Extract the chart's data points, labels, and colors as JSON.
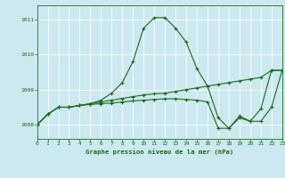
{
  "title": "Graphe pression niveau de la mer (hPa)",
  "bg_color": "#cce8f0",
  "grid_color": "#ffffff",
  "line_color": "#1a6b1a",
  "xlim": [
    0,
    23
  ],
  "ylim": [
    1007.6,
    1011.4
  ],
  "yticks": [
    1008,
    1009,
    1010,
    1011
  ],
  "xticks": [
    0,
    1,
    2,
    3,
    4,
    5,
    6,
    7,
    8,
    9,
    10,
    11,
    12,
    13,
    14,
    15,
    16,
    17,
    18,
    19,
    20,
    21,
    22,
    23
  ],
  "series": [
    [
      1008.0,
      1008.3,
      1008.5,
      1008.5,
      1008.55,
      1008.6,
      1008.7,
      1008.9,
      1009.2,
      1009.8,
      1010.75,
      1011.05,
      1011.05,
      1010.75,
      1010.35,
      1009.6,
      1009.1,
      1008.2,
      1007.9,
      1008.25,
      1008.1,
      1008.45,
      1009.55,
      1009.55
    ],
    [
      1008.0,
      1008.3,
      1008.5,
      1008.5,
      1008.55,
      1008.6,
      1008.65,
      1008.7,
      1008.75,
      1008.8,
      1008.85,
      1008.88,
      1008.9,
      1008.95,
      1009.0,
      1009.05,
      1009.1,
      1009.15,
      1009.2,
      1009.25,
      1009.3,
      1009.35,
      1009.55,
      1009.55
    ],
    [
      1008.0,
      1008.3,
      1008.5,
      1008.5,
      1008.55,
      1008.58,
      1008.6,
      1008.62,
      1008.65,
      1008.68,
      1008.7,
      1008.72,
      1008.74,
      1008.74,
      1008.72,
      1008.7,
      1008.65,
      1007.9,
      1007.9,
      1008.2,
      1008.1,
      1008.1,
      1008.5,
      1009.55
    ]
  ]
}
